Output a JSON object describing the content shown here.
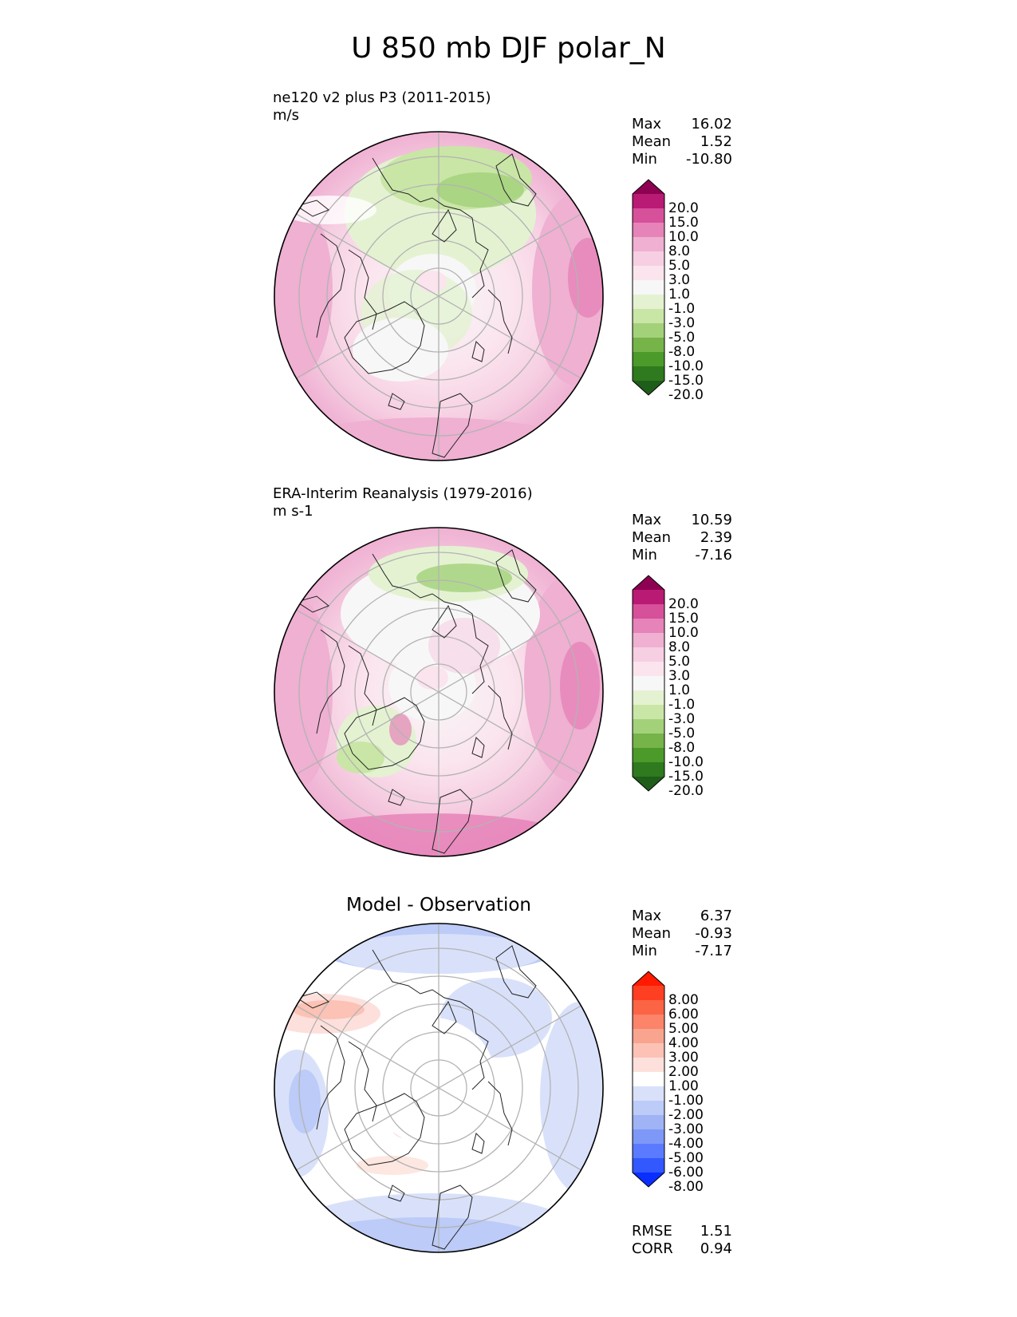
{
  "title": "U 850 mb DJF polar_N",
  "colors": {
    "diverging_green_pink": [
      "#1f5d1a",
      "#2f7a1e",
      "#4b9a2a",
      "#76b44a",
      "#a3d17a",
      "#c9e6a6",
      "#e4f2d2",
      "#f7f7f7",
      "#fbe4ee",
      "#f6cfe2",
      "#efb0d2",
      "#e683b8",
      "#d6509a",
      "#b81a74",
      "#8e0152"
    ],
    "diverging_blue_red": [
      "#0a2eff",
      "#3258ff",
      "#5a7bff",
      "#7d98f7",
      "#9fb3f5",
      "#bccbf7",
      "#d9e1fa",
      "#ffffff",
      "#fde0dc",
      "#fbc2b5",
      "#f9a48f",
      "#fb8469",
      "#fb6444",
      "#ff3f22",
      "#ff1a00"
    ],
    "land_outline": "#222222",
    "grid_line": "#b3b3b3",
    "disk_edge": "#000000"
  },
  "chart_data": [
    {
      "type": "heatmap",
      "projection": "north-polar-stereographic",
      "title": "ne120 v2 plus P3 (2011-2015)",
      "units": "m/s",
      "stats": {
        "max": "16.02",
        "mean": "1.52",
        "min": "-10.80"
      },
      "stat_labels": {
        "max": "Max",
        "mean": "Mean",
        "min": "Min"
      },
      "colorbar": {
        "levels": [
          "20.0",
          "15.0",
          "10.0",
          "8.0",
          "5.0",
          "3.0",
          "1.0",
          "-1.0",
          "-3.0",
          "-5.0",
          "-8.0",
          "-10.0",
          "-15.0",
          "-20.0"
        ],
        "extend": "both"
      }
    },
    {
      "type": "heatmap",
      "projection": "north-polar-stereographic",
      "title": "ERA-Interim Reanalysis (1979-2016)",
      "units": "m s-1",
      "stats": {
        "max": "10.59",
        "mean": "2.39",
        "min": "-7.16"
      },
      "stat_labels": {
        "max": "Max",
        "mean": "Mean",
        "min": "Min"
      },
      "colorbar": {
        "levels": [
          "20.0",
          "15.0",
          "10.0",
          "8.0",
          "5.0",
          "3.0",
          "1.0",
          "-1.0",
          "-3.0",
          "-5.0",
          "-8.0",
          "-10.0",
          "-15.0",
          "-20.0"
        ],
        "extend": "both"
      }
    },
    {
      "type": "heatmap",
      "projection": "north-polar-stereographic",
      "title": "Model - Observation",
      "stats": {
        "max": "6.37",
        "mean": "-0.93",
        "min": "-7.17"
      },
      "stat_labels": {
        "max": "Max",
        "mean": "Mean",
        "min": "Min"
      },
      "colorbar": {
        "levels": [
          "8.00",
          "6.00",
          "5.00",
          "4.00",
          "3.00",
          "2.00",
          "1.00",
          "-1.00",
          "-2.00",
          "-3.00",
          "-4.00",
          "-5.00",
          "-6.00",
          "-8.00"
        ],
        "extend": "both"
      },
      "metrics": {
        "rmse": "1.51",
        "corr": "0.94"
      },
      "metric_labels": {
        "rmse": "RMSE",
        "corr": "CORR"
      }
    }
  ]
}
